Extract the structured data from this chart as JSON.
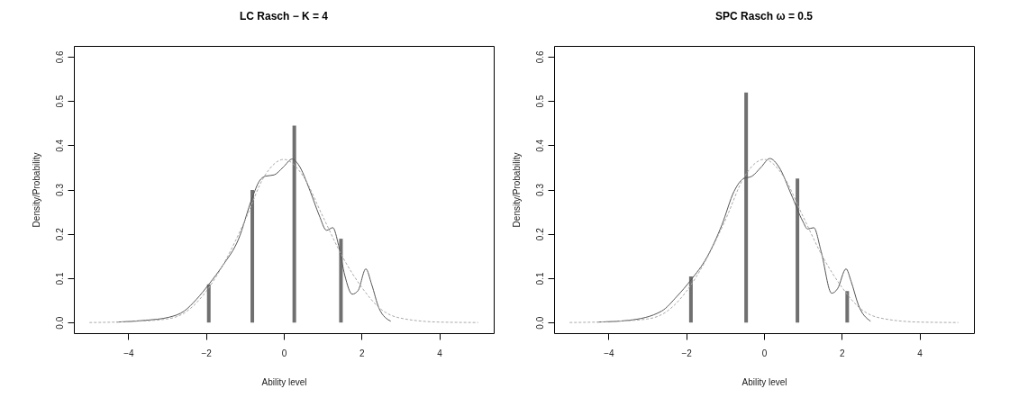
{
  "chart_data": [
    {
      "type": "bar",
      "title": "LC Rasch − K = 4",
      "xlabel": "Ability level",
      "ylabel": "Density/Probability",
      "xlim": [
        -5.4,
        5.4
      ],
      "xticks": [
        -4,
        -2,
        0,
        2,
        4
      ],
      "ylim": [
        -0.024,
        0.624
      ],
      "yticks": [
        {
          "value": 0,
          "label": "0.0"
        },
        {
          "value": 0.1,
          "label": "0.1"
        },
        {
          "value": 0.2,
          "label": "0.2"
        },
        {
          "value": 0.3,
          "label": "0.3"
        },
        {
          "value": 0.4,
          "label": "0.4"
        },
        {
          "value": 0.5,
          "label": "0.5"
        },
        {
          "value": 0.6,
          "label": "0.6"
        }
      ],
      "series": [
        {
          "color": "#707070",
          "x": [
            -1.93,
            -0.81,
            0.27,
            1.47
          ],
          "values": [
            0.086,
            0.299,
            0.444,
            0.189
          ]
        },
        {
          "type": "line",
          "color": "#555555",
          "line_style": "solid",
          "x": [
            -4.3,
            -3.56,
            -2.95,
            -2.56,
            -2.25,
            -1.93,
            -1.56,
            -1.17,
            -0.81,
            -0.63,
            -0.48,
            -0.25,
            -0.02,
            0.22,
            0.37,
            0.68,
            0.91,
            1.1,
            1.26,
            1.41,
            1.57,
            1.76,
            1.91,
            2.11,
            2.26,
            2.45,
            2.75
          ],
          "values": [
            0.001,
            0.005,
            0.012,
            0.026,
            0.052,
            0.086,
            0.13,
            0.187,
            0.282,
            0.319,
            0.33,
            0.333,
            0.35,
            0.369,
            0.357,
            0.296,
            0.242,
            0.208,
            0.214,
            0.174,
            0.106,
            0.064,
            0.072,
            0.121,
            0.086,
            0.032,
            0.003
          ]
        },
        {
          "type": "line",
          "color": "#aaaaaa",
          "line_style": "dashed",
          "x": [
            -5,
            -4,
            -3,
            -2.5,
            -2,
            -1.5,
            -1,
            -0.5,
            0,
            0.5,
            1,
            1.5,
            2,
            2.5,
            3,
            4,
            5
          ],
          "values": [
            0,
            0.002,
            0.008,
            0.025,
            0.07,
            0.14,
            0.23,
            0.33,
            0.368,
            0.33,
            0.24,
            0.15,
            0.08,
            0.03,
            0.01,
            0.001,
            0
          ]
        }
      ]
    },
    {
      "type": "bar",
      "title": "SPC Rasch ω =  0.5",
      "xlabel": "Ability level",
      "ylabel": "Density/Probability",
      "xlim": [
        -5.4,
        5.4
      ],
      "xticks": [
        -4,
        -2,
        0,
        2,
        4
      ],
      "ylim": [
        -0.024,
        0.624
      ],
      "yticks": [
        {
          "value": 0,
          "label": "0.0"
        },
        {
          "value": 0.1,
          "label": "0.1"
        },
        {
          "value": 0.2,
          "label": "0.2"
        },
        {
          "value": 0.3,
          "label": "0.3"
        },
        {
          "value": 0.4,
          "label": "0.4"
        },
        {
          "value": 0.5,
          "label": "0.5"
        },
        {
          "value": 0.6,
          "label": "0.6"
        }
      ],
      "series": [
        {
          "color": "#707070",
          "x": [
            -1.88,
            -0.46,
            0.86,
            2.14
          ],
          "values": [
            0.104,
            0.519,
            0.325,
            0.071
          ]
        },
        {
          "type": "line",
          "color": "#555555",
          "line_style": "solid",
          "x": [
            -4.29,
            -3.48,
            -2.63,
            -2.24,
            -1.88,
            -1.47,
            -1.08,
            -0.77,
            -0.54,
            -0.31,
            -0.08,
            0.15,
            0.39,
            0.7,
            1.0,
            1.12,
            1.28,
            1.47,
            1.74,
            1.89,
            2.11,
            2.24,
            2.43,
            2.74
          ],
          "values": [
            0.001,
            0.005,
            0.026,
            0.059,
            0.096,
            0.147,
            0.221,
            0.296,
            0.324,
            0.33,
            0.35,
            0.37,
            0.35,
            0.289,
            0.228,
            0.211,
            0.214,
            0.16,
            0.066,
            0.076,
            0.121,
            0.093,
            0.039,
            0.003
          ]
        },
        {
          "type": "line",
          "color": "#aaaaaa",
          "line_style": "dashed",
          "x": [
            -5,
            -4,
            -3,
            -2.5,
            -2,
            -1.5,
            -1,
            -0.5,
            0,
            0.5,
            1,
            1.5,
            2,
            2.5,
            3,
            4,
            5
          ],
          "values": [
            0,
            0.002,
            0.008,
            0.025,
            0.07,
            0.14,
            0.23,
            0.33,
            0.368,
            0.33,
            0.24,
            0.15,
            0.08,
            0.03,
            0.01,
            0.001,
            0
          ]
        }
      ]
    }
  ]
}
